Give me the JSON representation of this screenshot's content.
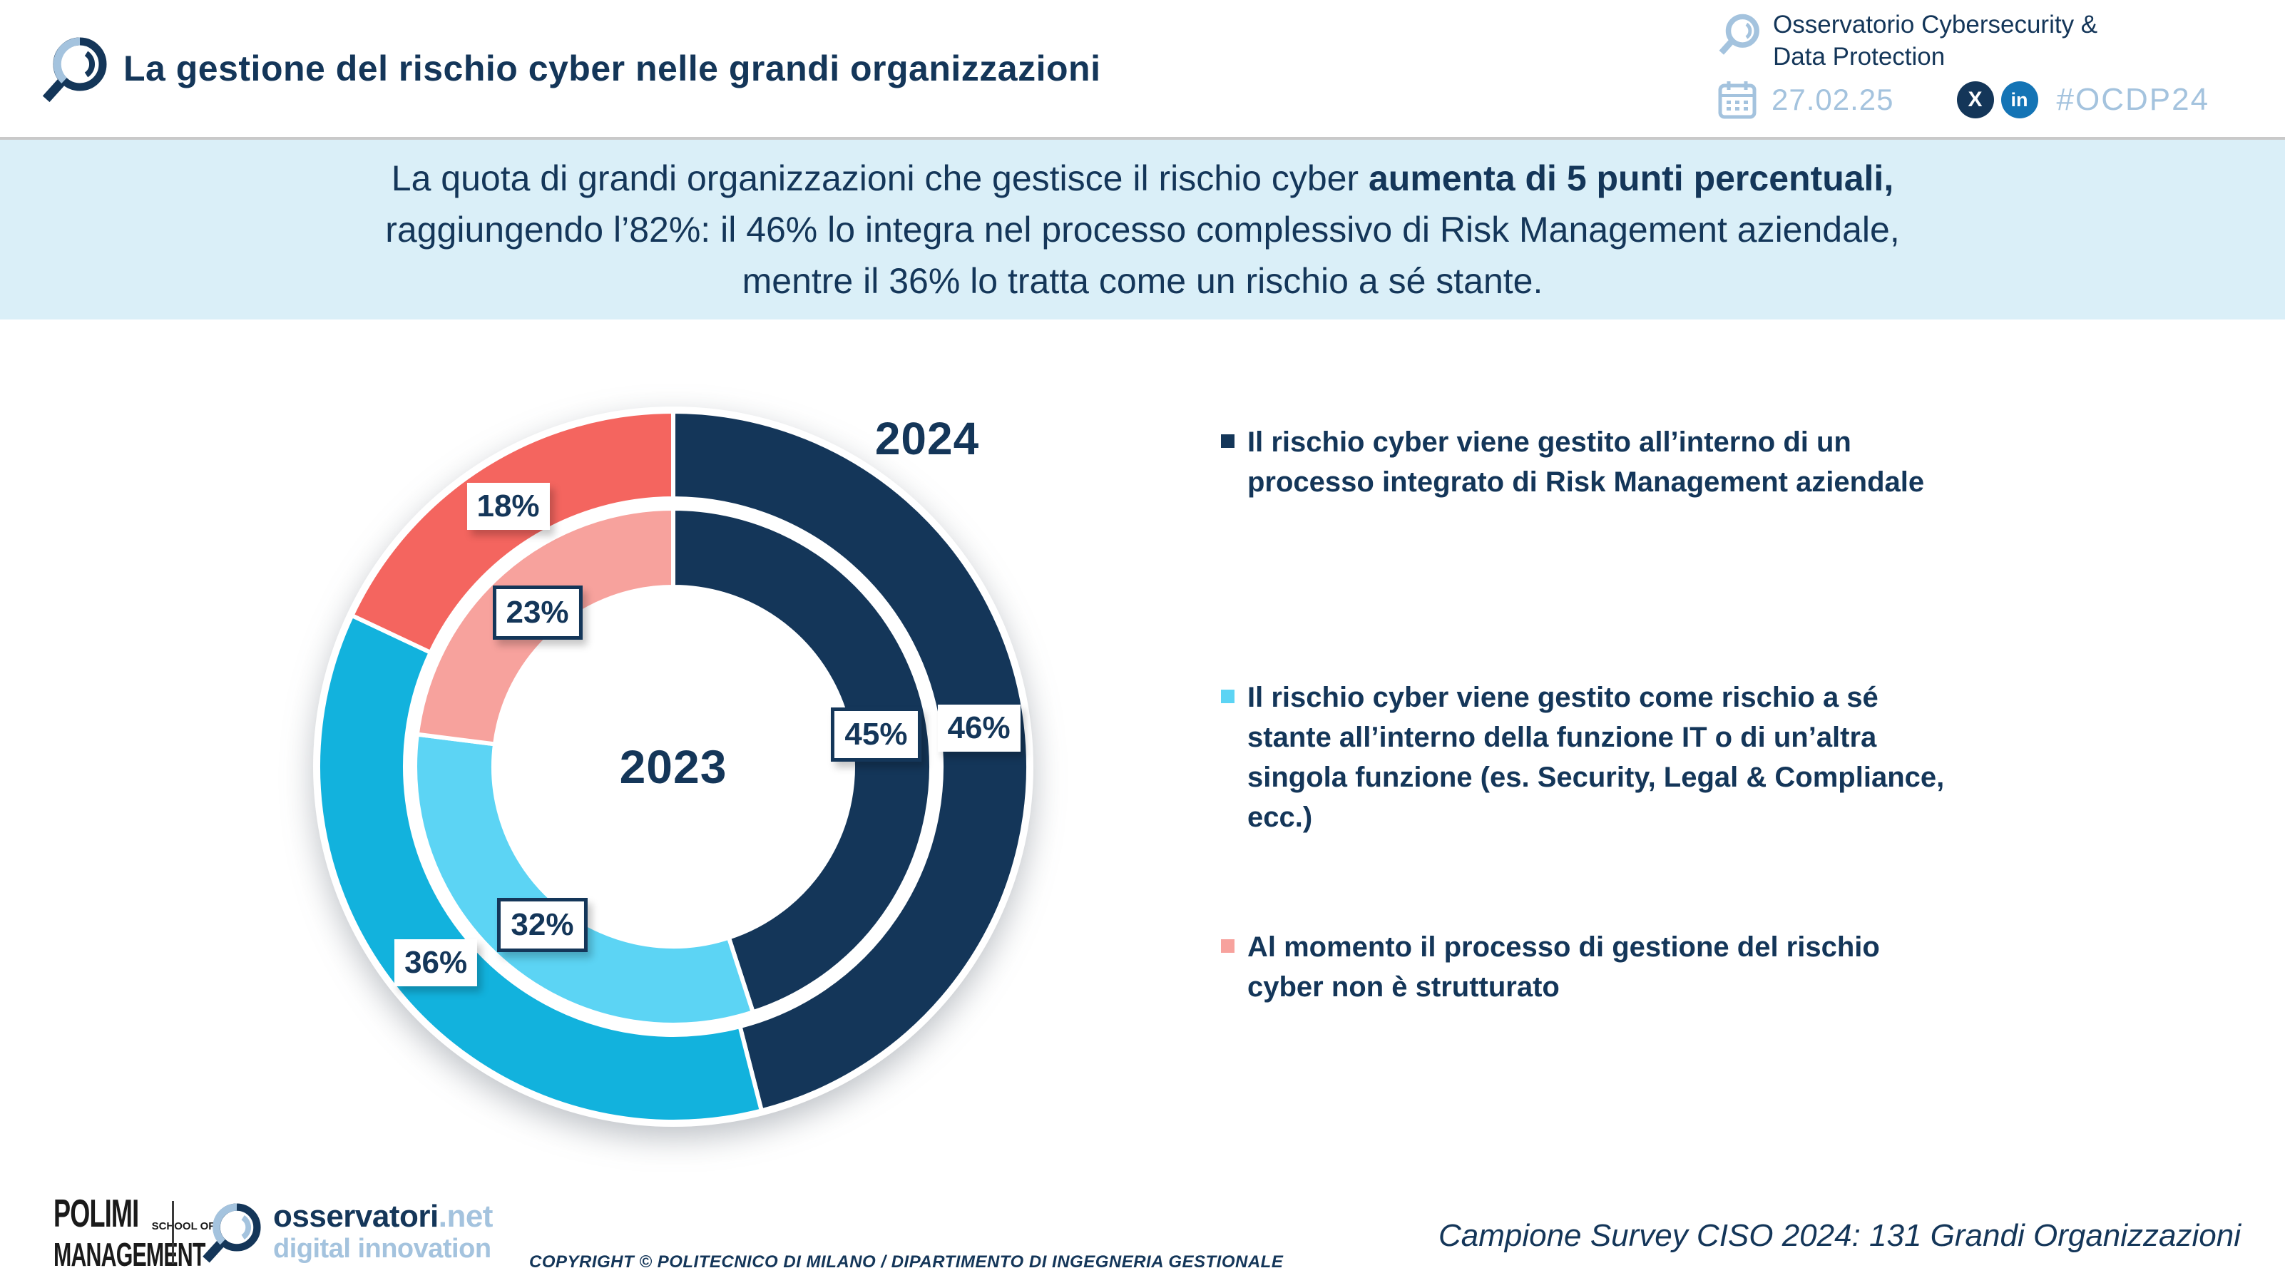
{
  "header": {
    "title": "La gestione del rischio cyber nelle grandi organizzazioni",
    "observatory": "Osservatorio Cybersecurity &\nData Protection",
    "date": "27.02.25",
    "x_glyph": "X",
    "linkedin_glyph": "in",
    "hashtag": "#OCDP24"
  },
  "banner": {
    "line1_regular": "La quota di grandi organizzazioni che gestisce il rischio cyber ",
    "line1_bold": "aumenta di 5 punti percentuali,",
    "line2_bold": "raggiungendo l’82%: il 46% lo integra nel processo complessivo di Risk Management aziendale,",
    "line3_regular": "mentre il 36% lo tratta come un rischio a sé stante."
  },
  "chart_data": {
    "type": "pie",
    "subtype": "double-ring-donut",
    "title": "",
    "outer_ring_label": "2024",
    "center_label": "2023",
    "categories": [
      "Il rischio cyber viene gestito all’interno di un processo integrato di Risk Management aziendale",
      "Il rischio cyber viene gestito come rischio a sé stante all’interno della funzione IT o di un’altra singola funzione (es. Security, Legal & Compliance, ecc.)",
      "Al momento il processo di gestione del rischio cyber non è strutturato"
    ],
    "series": [
      {
        "name": "2024",
        "ring": "outer",
        "values": [
          46,
          36,
          18
        ],
        "colors": [
          "#143659",
          "#12B2DD",
          "#F4655F"
        ]
      },
      {
        "name": "2023",
        "ring": "inner",
        "values": [
          45,
          32,
          23
        ],
        "colors": [
          "#143659",
          "#5CD4F4",
          "#F7A29D"
        ]
      }
    ],
    "start_angle_deg": 0,
    "direction": "clockwise",
    "legend_position": "right"
  },
  "legend": [
    {
      "color": "#143659",
      "text": "Il rischio cyber viene gestito all’interno di un\nprocesso integrato di Risk Management aziendale"
    },
    {
      "color": "#5CD4F4",
      "text": "Il rischio cyber viene gestito come rischio a sé\nstante all’interno della funzione IT o di un’altra\nsingola funzione (es. Security, Legal & Compliance,\necc.)"
    },
    {
      "color": "#F7A29D",
      "text": "Al momento il processo di gestione del rischio\ncyber non è strutturato"
    }
  ],
  "footer": {
    "polimi_line1": "POLIMI",
    "polimi_school": "SCHOOL OF",
    "polimi_line2": "MANAGEMENT",
    "osservatori_name": "osservatori",
    "osservatori_net": ".net",
    "osservatori_sub": "digital innovation",
    "copyright": "COPYRIGHT © POLITECNICO DI MILANO / DIPARTIMENTO DI INGEGNERIA GESTIONALE",
    "sample_note": "Campione Survey CISO 2024: 131 Grandi Organizzazioni"
  },
  "colors": {
    "navy": "#143659",
    "cyan": "#12B2DD",
    "cyan_light": "#5CD4F4",
    "coral": "#F4655F",
    "pink": "#F7A29D",
    "lightblue": "#A4C3DE",
    "banner_bg": "#DAEFF8",
    "linkedin": "#1474B5"
  }
}
